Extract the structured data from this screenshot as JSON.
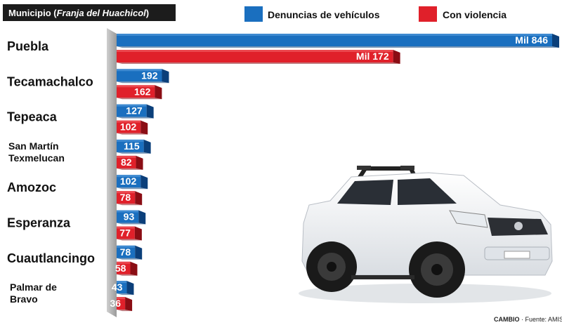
{
  "header": {
    "prefix": "Municipio (",
    "italic": "Franja del Huachicol",
    "suffix": ")"
  },
  "legend": [
    {
      "label": "Denuncias de vehículos",
      "color": "#1a6fbf"
    },
    {
      "label": "Con violencia",
      "color": "#e0202a"
    }
  ],
  "source": {
    "brand": "CAMBIO",
    "text": "· Fuente: AMIS"
  },
  "chart_data": {
    "type": "bar",
    "categories": [
      [
        "Puebla"
      ],
      [
        "Tecamachalco"
      ],
      [
        "Tepeaca"
      ],
      [
        "San Martín",
        "Texmelucan"
      ],
      [
        "Amozoc"
      ],
      [
        "Esperanza"
      ],
      [
        "Cuautlancingo"
      ],
      [
        "Palmar de",
        "Bravo"
      ]
    ],
    "series": [
      {
        "name": "Denuncias de vehículos",
        "values": [
          1846,
          192,
          127,
          115,
          102,
          93,
          78,
          43
        ],
        "labels": [
          "Mil 846",
          "192",
          "127",
          "115",
          "102",
          "93",
          "78",
          "43"
        ]
      },
      {
        "name": "Con violencia",
        "values": [
          1172,
          162,
          102,
          82,
          78,
          77,
          58,
          36
        ],
        "labels": [
          "Mil 172",
          "162",
          "102",
          "82",
          "78",
          "77",
          "58",
          "36"
        ]
      }
    ]
  }
}
